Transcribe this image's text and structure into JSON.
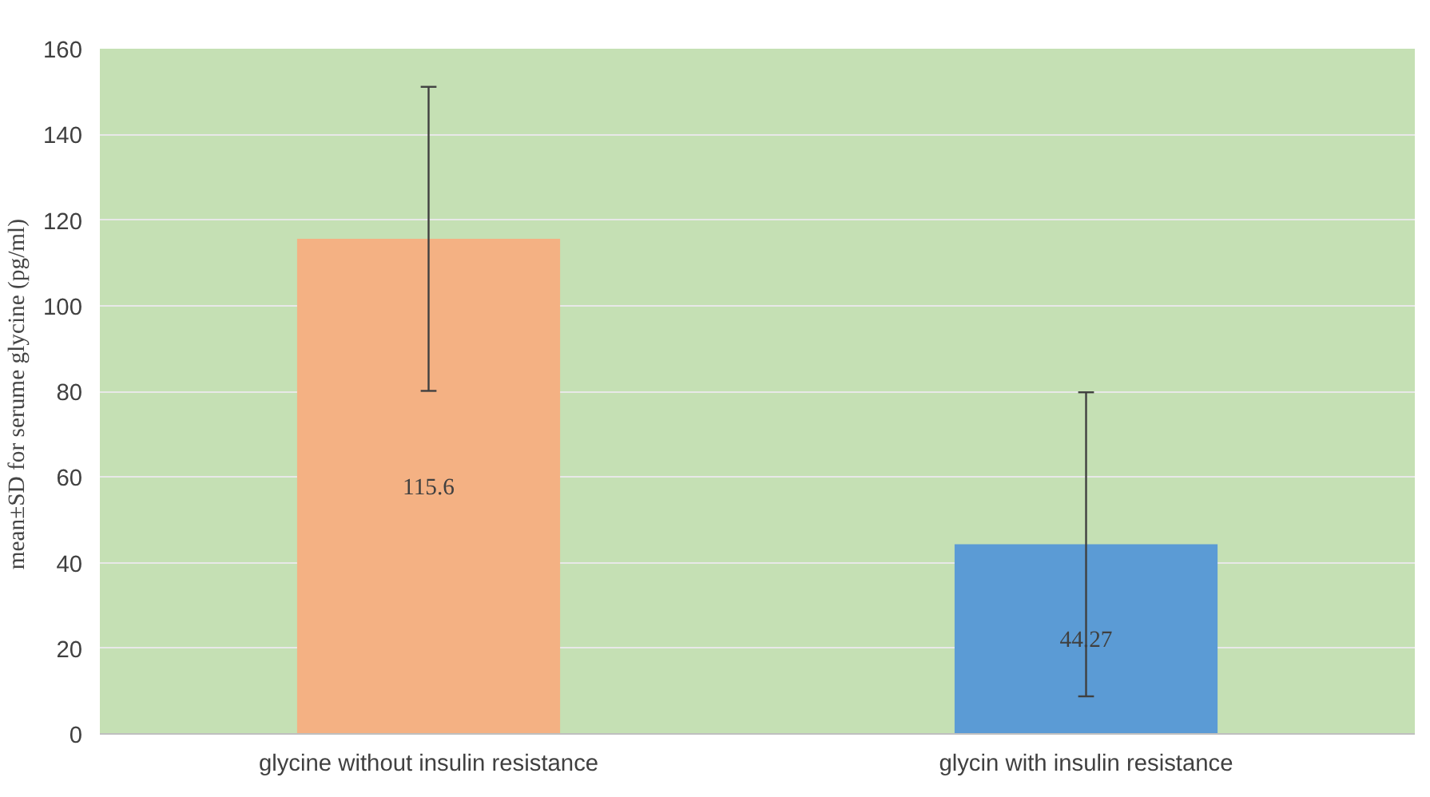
{
  "chart_data": {
    "type": "bar",
    "ylabel": "mean±SD for serume glycine  (pg/ml)",
    "categories": [
      "glycine without insulin resistance",
      "glycin with insulin resistance"
    ],
    "values": [
      115.6,
      44.27
    ],
    "colors": [
      "#f4b183",
      "#5b9bd5"
    ],
    "errors": [
      35.5,
      35.5
    ],
    "data_labels": true,
    "ylim": [
      0,
      160
    ],
    "yticks": [
      0,
      20,
      40,
      60,
      80,
      100,
      120,
      140,
      160
    ],
    "grid": "y"
  }
}
